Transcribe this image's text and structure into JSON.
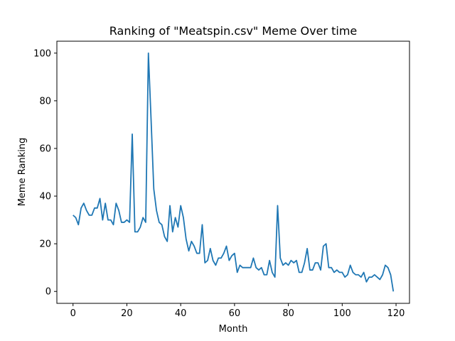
{
  "chart_data": {
    "type": "line",
    "title": "Ranking of \"Meatspin.csv\" Meme Over time",
    "xlabel": "Month",
    "ylabel": "Meme Ranking",
    "xlim": [
      -6,
      125
    ],
    "ylim": [
      -5,
      105
    ],
    "xticks": [
      0,
      20,
      40,
      60,
      80,
      100,
      120
    ],
    "yticks": [
      0,
      20,
      40,
      60,
      80,
      100
    ],
    "grid": false,
    "line_color": "#1f77b4",
    "series": [
      {
        "x": [
          0,
          1,
          2,
          3,
          4,
          5,
          6,
          7,
          8,
          9,
          10,
          11,
          12,
          13,
          14,
          15,
          16,
          17,
          18,
          19,
          20,
          21,
          22,
          23,
          24,
          25,
          26,
          27,
          28,
          29,
          30,
          31,
          32,
          33,
          34,
          35,
          36,
          37,
          38,
          39,
          40,
          41,
          42,
          43,
          44,
          45,
          46,
          47,
          48,
          49,
          50,
          51,
          52,
          53,
          54,
          55,
          56,
          57,
          58,
          59,
          60,
          61,
          62,
          63,
          64,
          65,
          66,
          67,
          68,
          69,
          70,
          71,
          72,
          73,
          74,
          75,
          76,
          77,
          78,
          79,
          80,
          81,
          82,
          83,
          84,
          85,
          86,
          87,
          88,
          89,
          90,
          91,
          92,
          93,
          94,
          95,
          96,
          97,
          98,
          99,
          100,
          101,
          102,
          103,
          104,
          105,
          106,
          107,
          108,
          109,
          110,
          111,
          112,
          113,
          114,
          115,
          116,
          117,
          118,
          119
        ],
        "values": [
          32,
          31,
          28,
          35,
          37,
          34,
          32,
          32,
          35,
          35,
          39,
          30,
          37,
          30,
          30,
          28,
          37,
          34,
          29,
          29,
          30,
          29,
          66,
          25,
          25,
          27,
          31,
          29,
          100,
          72,
          43,
          34,
          29,
          28,
          23,
          21,
          36,
          25,
          31,
          27,
          36,
          31,
          22,
          17,
          21,
          19,
          16,
          16,
          28,
          12,
          13,
          18,
          13,
          11,
          14,
          14,
          16,
          19,
          13,
          15,
          16,
          8,
          11,
          10,
          10,
          10,
          10,
          14,
          10,
          9,
          10,
          7,
          7,
          13,
          8,
          6,
          36,
          14,
          11,
          12,
          11,
          13,
          12,
          13,
          8,
          8,
          12,
          18,
          9,
          9,
          12,
          12,
          9,
          19,
          20,
          10,
          10,
          8,
          9,
          8,
          8,
          6,
          7,
          11,
          8,
          7,
          7,
          6,
          8,
          4,
          6,
          6,
          7,
          6,
          5,
          7,
          11,
          10,
          7,
          0
        ]
      }
    ]
  }
}
